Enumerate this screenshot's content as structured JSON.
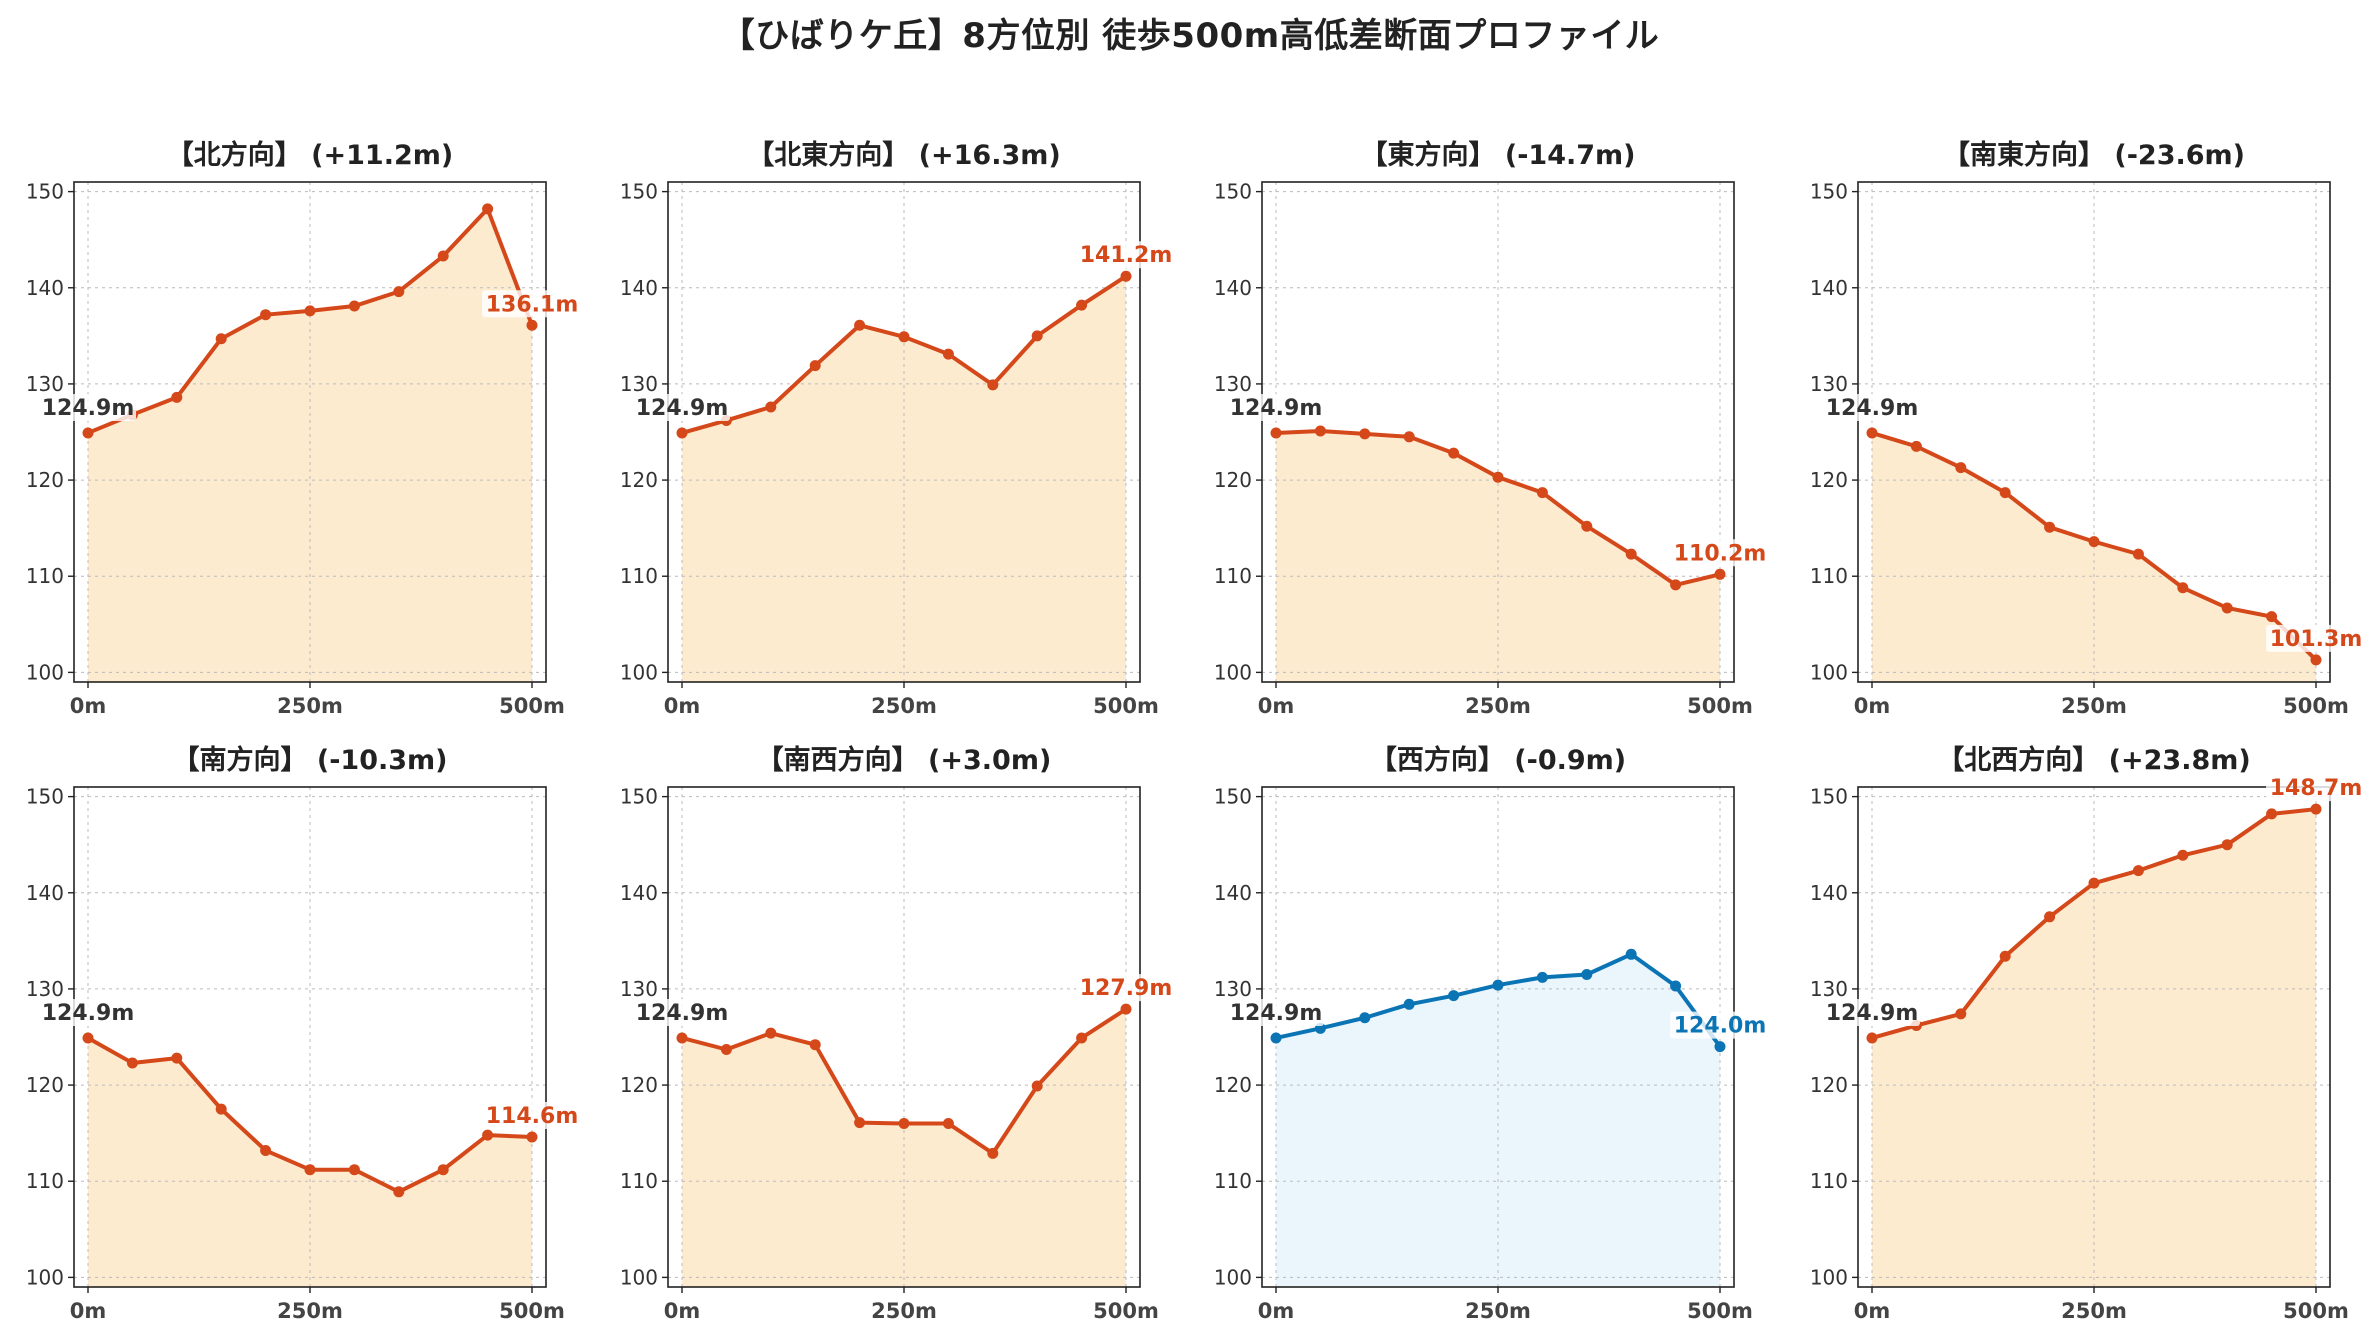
{
  "title": "【ひばりケ丘】8方位別 徒歩500m高低差断面プロファイル",
  "colors": {
    "up_line": "#d4481a",
    "up_fill": "#fdebd0",
    "down_line": "#0b74b5",
    "down_fill": "#ebf6fc",
    "start_label": "#333333",
    "grid": "#bbbbbb"
  },
  "chart_data": [
    {
      "type": "line",
      "title": "【北方向】 (+11.2m)",
      "x": [
        0,
        50,
        100,
        150,
        200,
        250,
        300,
        350,
        400,
        450,
        500
      ],
      "values": [
        124.9,
        126.8,
        128.6,
        134.7,
        137.2,
        137.6,
        138.1,
        139.6,
        143.3,
        148.2,
        136.1
      ],
      "start_label": "124.9m",
      "end_label": "136.1m",
      "xticks": [
        "0m",
        "250m",
        "500m"
      ],
      "yticks": [
        "100",
        "110",
        "120",
        "130",
        "140",
        "150"
      ],
      "ylim": [
        99,
        151
      ],
      "grid": true,
      "color": "up"
    },
    {
      "type": "line",
      "title": "【北東方向】 (+16.3m)",
      "x": [
        0,
        50,
        100,
        150,
        200,
        250,
        300,
        350,
        400,
        450,
        500
      ],
      "values": [
        124.9,
        126.2,
        127.6,
        131.9,
        136.1,
        134.9,
        133.1,
        129.9,
        135.0,
        138.2,
        141.2
      ],
      "start_label": "124.9m",
      "end_label": "141.2m",
      "xticks": [
        "0m",
        "250m",
        "500m"
      ],
      "yticks": [
        "100",
        "110",
        "120",
        "130",
        "140",
        "150"
      ],
      "ylim": [
        99,
        151
      ],
      "grid": true,
      "color": "up"
    },
    {
      "type": "line",
      "title": "【東方向】 (-14.7m)",
      "x": [
        0,
        50,
        100,
        150,
        200,
        250,
        300,
        350,
        400,
        450,
        500
      ],
      "values": [
        124.9,
        125.1,
        124.8,
        124.5,
        122.8,
        120.3,
        118.7,
        115.2,
        112.3,
        109.1,
        110.2
      ],
      "start_label": "124.9m",
      "end_label": "110.2m",
      "xticks": [
        "0m",
        "250m",
        "500m"
      ],
      "yticks": [
        "100",
        "110",
        "120",
        "130",
        "140",
        "150"
      ],
      "ylim": [
        99,
        151
      ],
      "grid": true,
      "color": "up"
    },
    {
      "type": "line",
      "title": "【南東方向】 (-23.6m)",
      "x": [
        0,
        50,
        100,
        150,
        200,
        250,
        300,
        350,
        400,
        450,
        500
      ],
      "values": [
        124.9,
        123.5,
        121.3,
        118.7,
        115.1,
        113.6,
        112.3,
        108.8,
        106.7,
        105.8,
        101.3
      ],
      "start_label": "124.9m",
      "end_label": "101.3m",
      "xticks": [
        "0m",
        "250m",
        "500m"
      ],
      "yticks": [
        "100",
        "110",
        "120",
        "130",
        "140",
        "150"
      ],
      "ylim": [
        99,
        151
      ],
      "grid": true,
      "color": "up"
    },
    {
      "type": "line",
      "title": "【南方向】 (-10.3m)",
      "x": [
        0,
        50,
        100,
        150,
        200,
        250,
        300,
        350,
        400,
        450,
        500
      ],
      "values": [
        124.9,
        122.3,
        122.8,
        117.5,
        113.2,
        111.2,
        111.2,
        108.9,
        111.2,
        114.8,
        114.6
      ],
      "start_label": "124.9m",
      "end_label": "114.6m",
      "xticks": [
        "0m",
        "250m",
        "500m"
      ],
      "yticks": [
        "100",
        "110",
        "120",
        "130",
        "140",
        "150"
      ],
      "ylim": [
        99,
        151
      ],
      "grid": true,
      "color": "up"
    },
    {
      "type": "line",
      "title": "【南西方向】 (+3.0m)",
      "x": [
        0,
        50,
        100,
        150,
        200,
        250,
        300,
        350,
        400,
        450,
        500
      ],
      "values": [
        124.9,
        123.7,
        125.4,
        124.2,
        116.1,
        116.0,
        116.0,
        112.9,
        119.9,
        124.9,
        127.9
      ],
      "start_label": "124.9m",
      "end_label": "127.9m",
      "xticks": [
        "0m",
        "250m",
        "500m"
      ],
      "yticks": [
        "100",
        "110",
        "120",
        "130",
        "140",
        "150"
      ],
      "ylim": [
        99,
        151
      ],
      "grid": true,
      "color": "up"
    },
    {
      "type": "line",
      "title": "【西方向】 (-0.9m)",
      "x": [
        0,
        50,
        100,
        150,
        200,
        250,
        300,
        350,
        400,
        450,
        500
      ],
      "values": [
        124.9,
        125.9,
        127.0,
        128.4,
        129.3,
        130.4,
        131.2,
        131.5,
        133.6,
        130.3,
        124.0
      ],
      "start_label": "124.9m",
      "end_label": "124.0m",
      "xticks": [
        "0m",
        "250m",
        "500m"
      ],
      "yticks": [
        "100",
        "110",
        "120",
        "130",
        "140",
        "150"
      ],
      "ylim": [
        99,
        151
      ],
      "grid": true,
      "color": "down"
    },
    {
      "type": "line",
      "title": "【北西方向】 (+23.8m)",
      "x": [
        0,
        50,
        100,
        150,
        200,
        250,
        300,
        350,
        400,
        450,
        500
      ],
      "values": [
        124.9,
        126.2,
        127.4,
        133.4,
        137.5,
        141.0,
        142.3,
        143.9,
        145.0,
        148.2,
        148.7
      ],
      "start_label": "124.9m",
      "end_label": "148.7m",
      "xticks": [
        "0m",
        "250m",
        "500m"
      ],
      "yticks": [
        "100",
        "110",
        "120",
        "130",
        "140",
        "150"
      ],
      "ylim": [
        99,
        151
      ],
      "grid": true,
      "color": "up"
    }
  ]
}
